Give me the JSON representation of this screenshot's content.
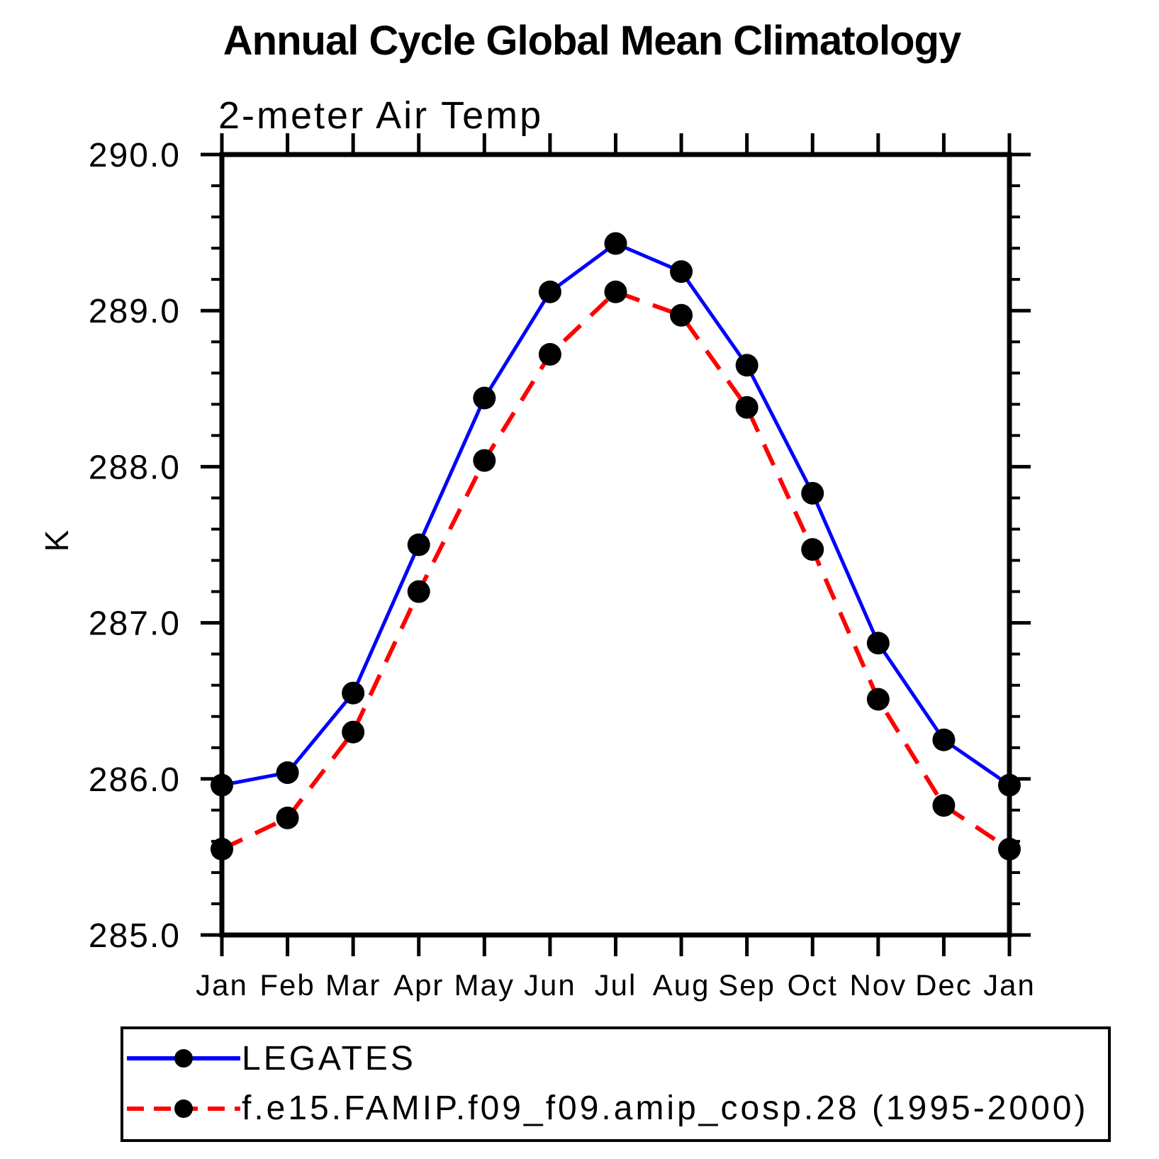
{
  "chart_data": {
    "type": "line",
    "title": "Annual Cycle Global Mean Climatology",
    "subtitle": "2-meter Air Temp",
    "ylabel": "K",
    "ylim": [
      285.0,
      290.0
    ],
    "ytick_step": 1.0,
    "ytick_minor_step": 0.2,
    "ytick_labels": [
      "290.0",
      "289.0",
      "288.0",
      "287.0",
      "286.0",
      "285.0"
    ],
    "categories": [
      "Jan",
      "Feb",
      "Mar",
      "Apr",
      "May",
      "Jun",
      "Jul",
      "Aug",
      "Sep",
      "Oct",
      "Nov",
      "Dec",
      "Jan"
    ],
    "series": [
      {
        "name": "LEGATES",
        "color": "#0000ff",
        "line_style": "solid",
        "marker": "filled-circle",
        "marker_color": "#000000",
        "values": [
          285.96,
          286.04,
          286.55,
          287.5,
          288.44,
          289.12,
          289.43,
          289.25,
          288.65,
          287.83,
          286.87,
          286.25,
          285.96
        ]
      },
      {
        "name": "f.e15.FAMIP.f09_f09.amip_cosp.28 (1995-2000)",
        "color": "#ff0000",
        "line_style": "dashed",
        "marker": "filled-circle",
        "marker_color": "#000000",
        "values": [
          285.55,
          285.75,
          286.3,
          287.2,
          288.04,
          288.72,
          289.12,
          288.97,
          288.38,
          287.47,
          286.51,
          285.83,
          285.55
        ]
      }
    ],
    "grid": false,
    "legend_position": "bottom",
    "frame_color": "#000000",
    "background_color": "#ffffff"
  }
}
